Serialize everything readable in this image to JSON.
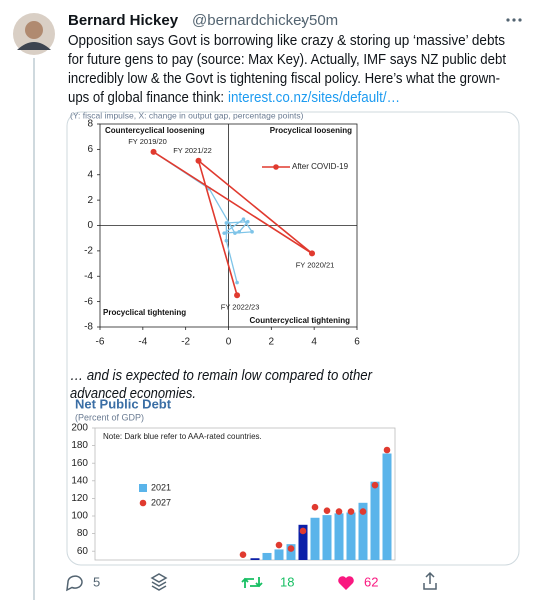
{
  "tweet": {
    "author_name": "Bernard Hickey",
    "author_handle": "@bernardchickey",
    "separator": "·",
    "time": "50m",
    "text_lines": [
      "Opposition says Govt is borrowing like crazy & storing up ‘massive’ debts",
      "for future gens to pay (source: Max Key). Actually, IMF says NZ public debt",
      "incredibly low & the Govt is tightening fiscal policy. Here’s what the grown-"
    ],
    "last_line_text": "ups of global finance think:",
    "link": "interest.co.nz/sites/default/…",
    "caption_lines": [
      "… and is expected to remain low compared to other",
      "advanced economies."
    ]
  },
  "chart_data": [
    {
      "type": "line",
      "title": "(Y: fiscal impulse, X: change in output gap, percentage points)",
      "annotations": [
        "Countercyclical loosening",
        "Procyclical loosening",
        "Procyclical tightening",
        "Countercyclical tightening"
      ],
      "xlim": [
        -6,
        6
      ],
      "ylim": [
        -8,
        8
      ],
      "xticks": [
        -6,
        -4,
        -2,
        0,
        2,
        4,
        6
      ],
      "yticks": [
        -8,
        -6,
        -4,
        -2,
        0,
        2,
        4,
        6,
        8
      ],
      "legend": "upper right",
      "series": [
        {
          "color": "#7ec4e8",
          "x": [
            0.4,
            -0.1,
            -0.1,
            0.9,
            0.5,
            -0.2,
            0.7,
            1.1,
            0.3,
            -0.9,
            -3.5
          ],
          "values": [
            -4.5,
            -1.2,
            0.2,
            0.3,
            -0.5,
            -0.6,
            0.5,
            -0.5,
            -0.6,
            2.9,
            5.8
          ]
        },
        {
          "name": "After COVID-19",
          "color": "#e03a2f",
          "x": [
            -3.5,
            3.9,
            -1.4,
            0.4
          ],
          "values": [
            5.8,
            -2.2,
            5.1,
            -5.5
          ],
          "point_labels": [
            "FY 2019/20",
            "FY 2020/21",
            "FY 2021/22",
            "FY 2022/23"
          ]
        }
      ]
    },
    {
      "type": "bar",
      "title": "Net Public Debt",
      "subtitle": "(Percent of GDP)",
      "note": "Note: Dark blue refer to AAA-rated countries.",
      "categories": [
        null,
        null,
        null,
        null,
        null,
        null,
        null,
        null,
        null,
        null,
        null,
        null,
        null
      ],
      "ylim": [
        50,
        200
      ],
      "yticks": [
        60,
        80,
        100,
        120,
        140,
        160,
        180,
        200
      ],
      "series": [
        {
          "name": "2021",
          "color": "#5ab4ea",
          "colors": [
            "#5ab4ea",
            "#0b1fa8",
            "#5ab4ea",
            "#5ab4ea",
            "#5ab4ea",
            "#0b1fa8",
            "#5ab4ea",
            "#5ab4ea",
            "#5ab4ea",
            "#5ab4ea",
            "#5ab4ea",
            "#5ab4ea",
            "#5ab4ea"
          ],
          "values": [
            null,
            52,
            58,
            62,
            68,
            90,
            98,
            101,
            103,
            104,
            115,
            139,
            171
          ]
        },
        {
          "name": "2027",
          "color": "#e03a2f",
          "values": [
            56,
            null,
            null,
            67,
            63,
            83,
            110,
            106,
            105,
            105,
            105,
            135,
            175
          ]
        }
      ]
    }
  ],
  "actions": {
    "replies": 5,
    "retweets": 18,
    "likes": 62
  }
}
